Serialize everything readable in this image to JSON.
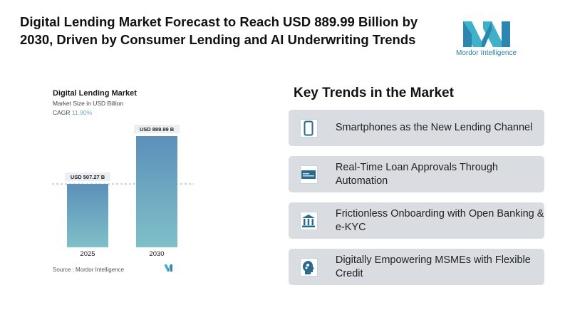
{
  "header": {
    "title": "Digital Lending Market Forecast to Reach USD 889.99 Billion by 2030, Driven by Consumer Lending and AI Underwriting Trends",
    "logo_text": "Mordor Intelligence"
  },
  "chart_data": {
    "type": "bar",
    "title": "Digital Lending Market",
    "subtitle": "Market Size in USD Billion",
    "cagr_label": "CAGR",
    "cagr_value": "11.90%",
    "categories": [
      "2025",
      "2030"
    ],
    "values": [
      507.27,
      889.99
    ],
    "data_labels": [
      "USD 507.27 B",
      "USD 889.99 B"
    ],
    "ylim": [
      0,
      889.99
    ],
    "grid": false,
    "bar_color_top": "#5b90b8",
    "bar_color_bottom": "#7fc0c9",
    "source": "Source : Mordor Intelligence"
  },
  "trends": {
    "heading": "Key Trends in the Market",
    "items": [
      {
        "icon": "smartphone-icon",
        "label": "Smartphones as the New Lending Channel"
      },
      {
        "icon": "check-payment-icon",
        "label": "Real-Time Loan Approvals Through Automation"
      },
      {
        "icon": "bank-icon",
        "label": "Frictionless Onboarding with Open Banking & e-KYC"
      },
      {
        "icon": "head-gears-icon",
        "label": "Digitally Empowering MSMEs with Flexible Credit"
      }
    ]
  },
  "colors": {
    "icon": "#2a6a8e",
    "card": "#d9dde2",
    "logo": "#3aa0c0"
  }
}
